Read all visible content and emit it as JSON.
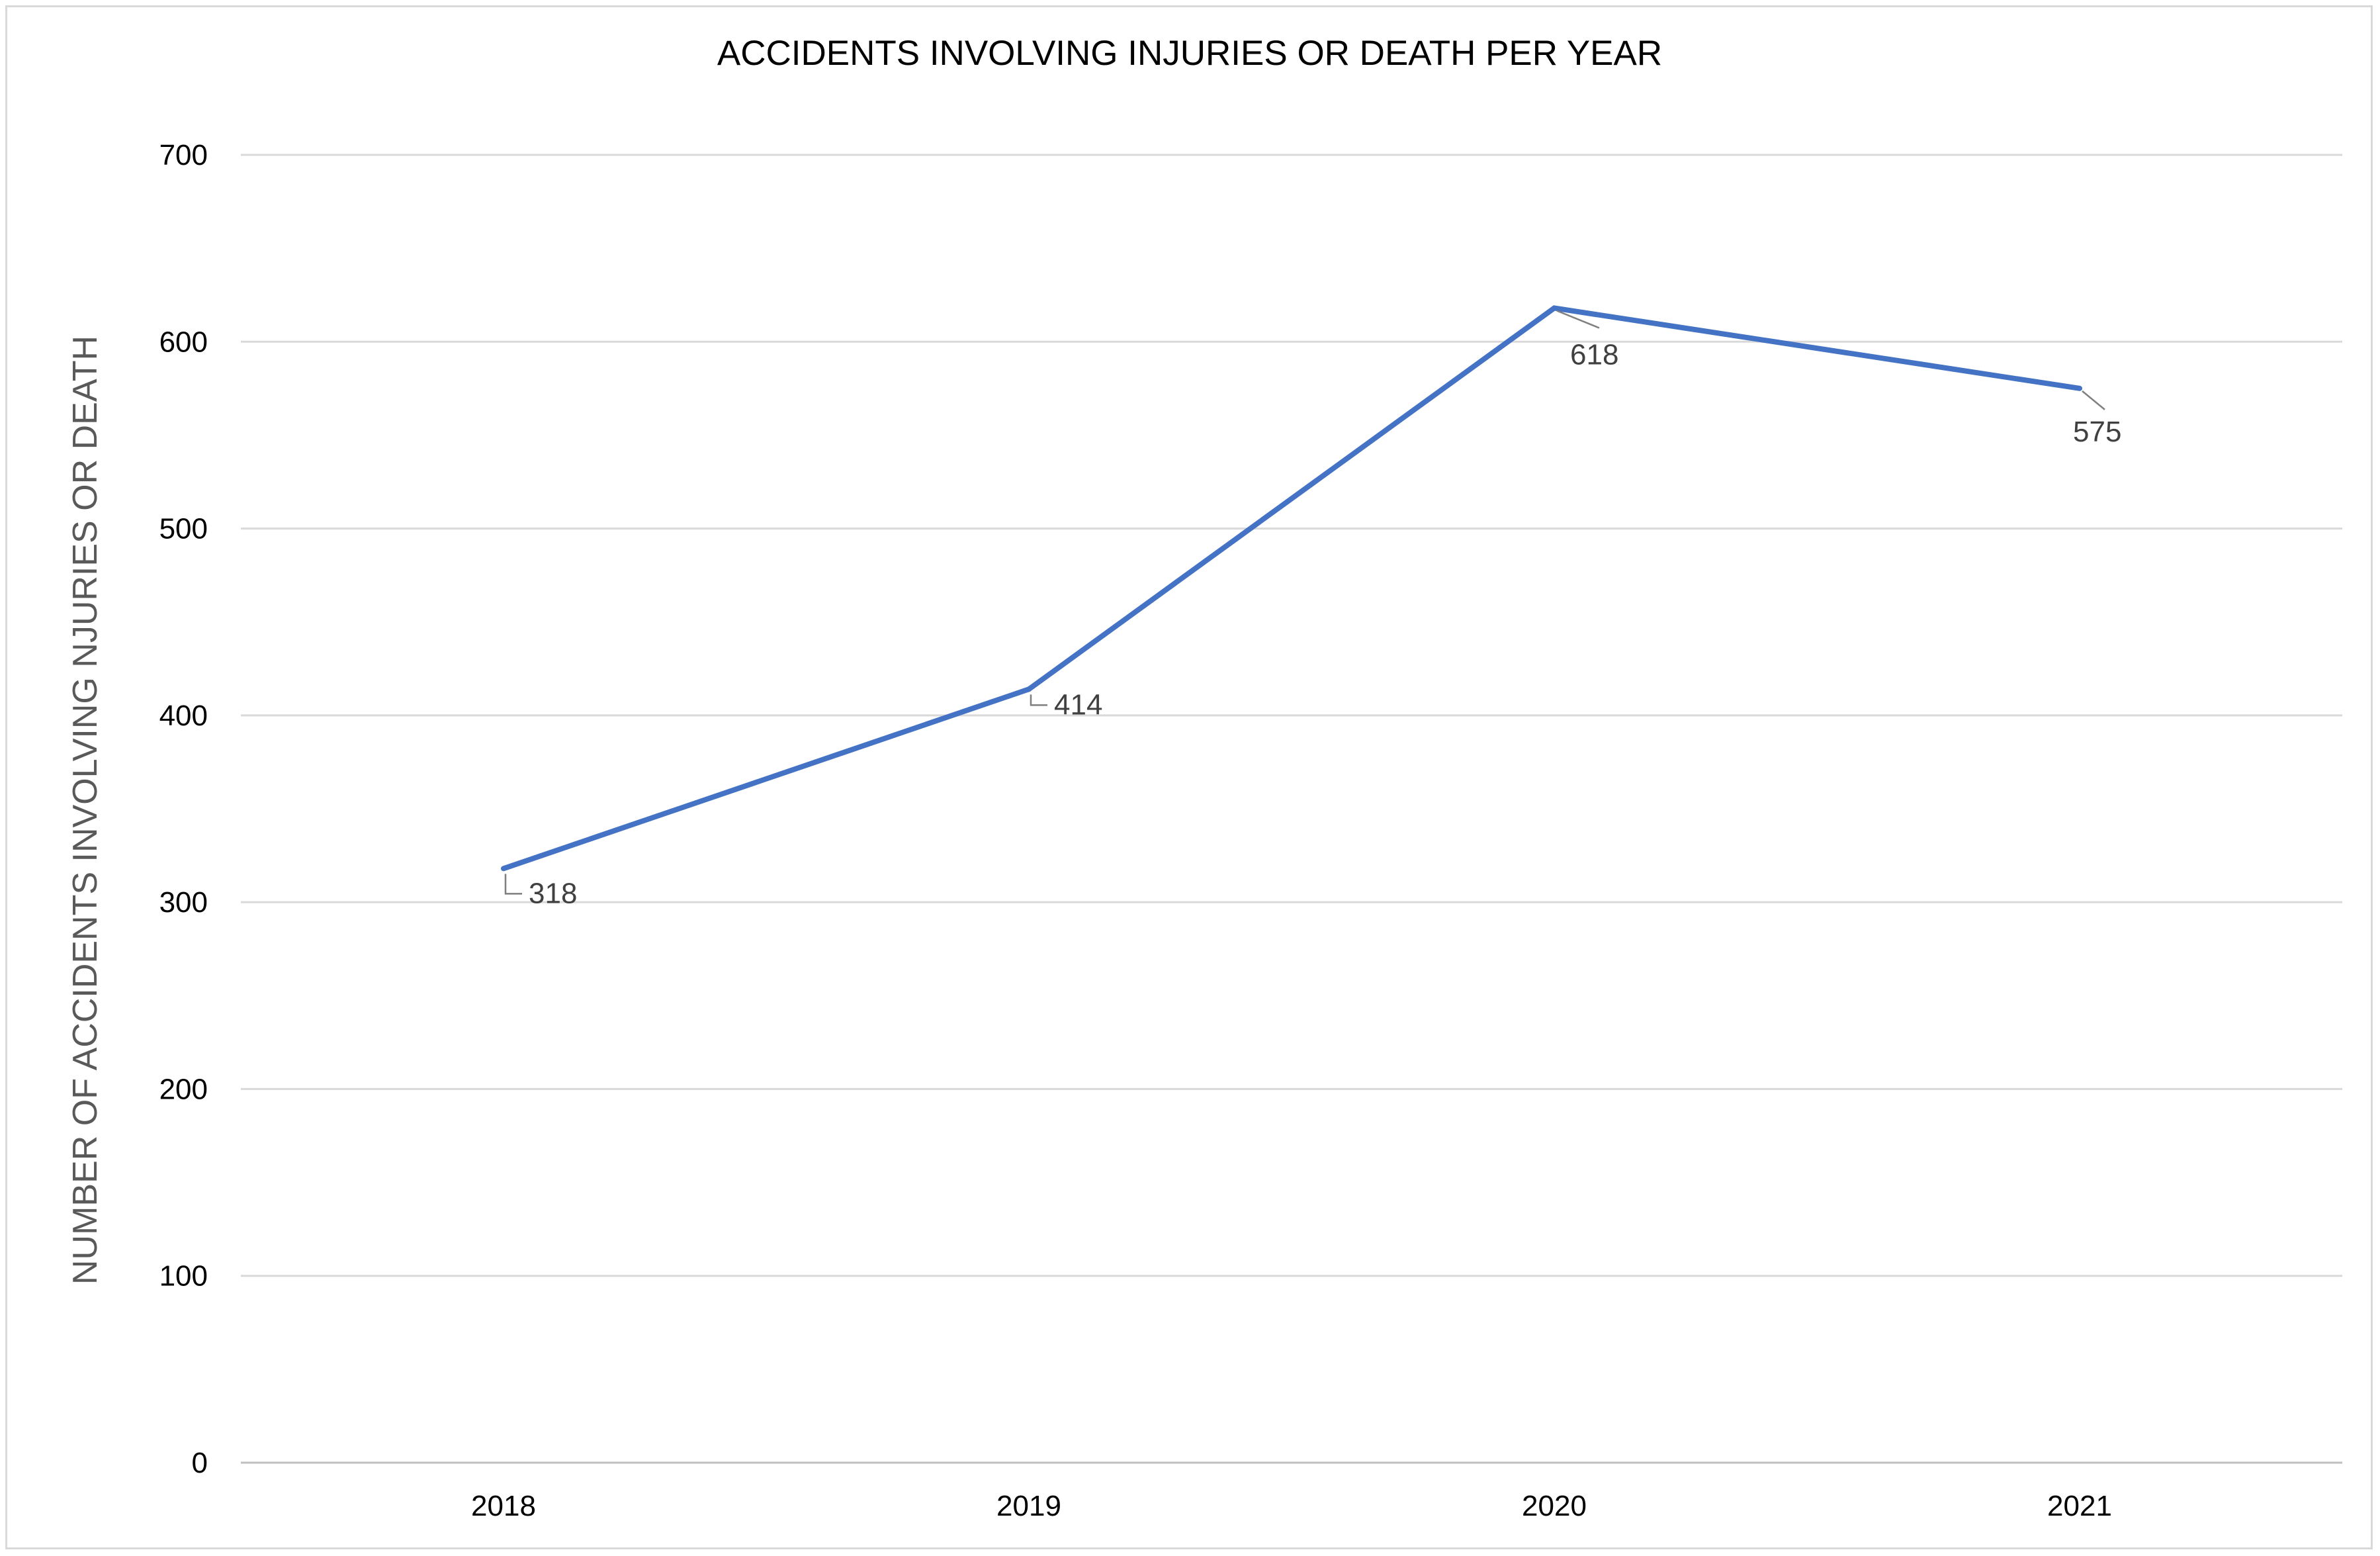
{
  "chart_data": {
    "type": "line",
    "title": "ACCIDENTS INVOLVING INJURIES OR DEATH PER YEAR",
    "xlabel": "",
    "ylabel": "NUMBER OF ACCIDENTS INVOLVING NJURIES OR DEATH",
    "categories": [
      "2018",
      "2019",
      "2020",
      "2021"
    ],
    "series": [
      {
        "values": [
          318,
          414,
          618,
          575
        ],
        "color": "#4472c4"
      }
    ],
    "data_labels": [
      "318",
      "414",
      "618",
      "575"
    ],
    "ylim": [
      0,
      700
    ],
    "yticks": [
      0,
      100,
      200,
      300,
      400,
      500,
      600,
      700
    ],
    "ytick_labels": [
      "0",
      "100",
      "200",
      "300",
      "400",
      "500",
      "600",
      "700"
    ],
    "grid": true,
    "legend": "none"
  }
}
